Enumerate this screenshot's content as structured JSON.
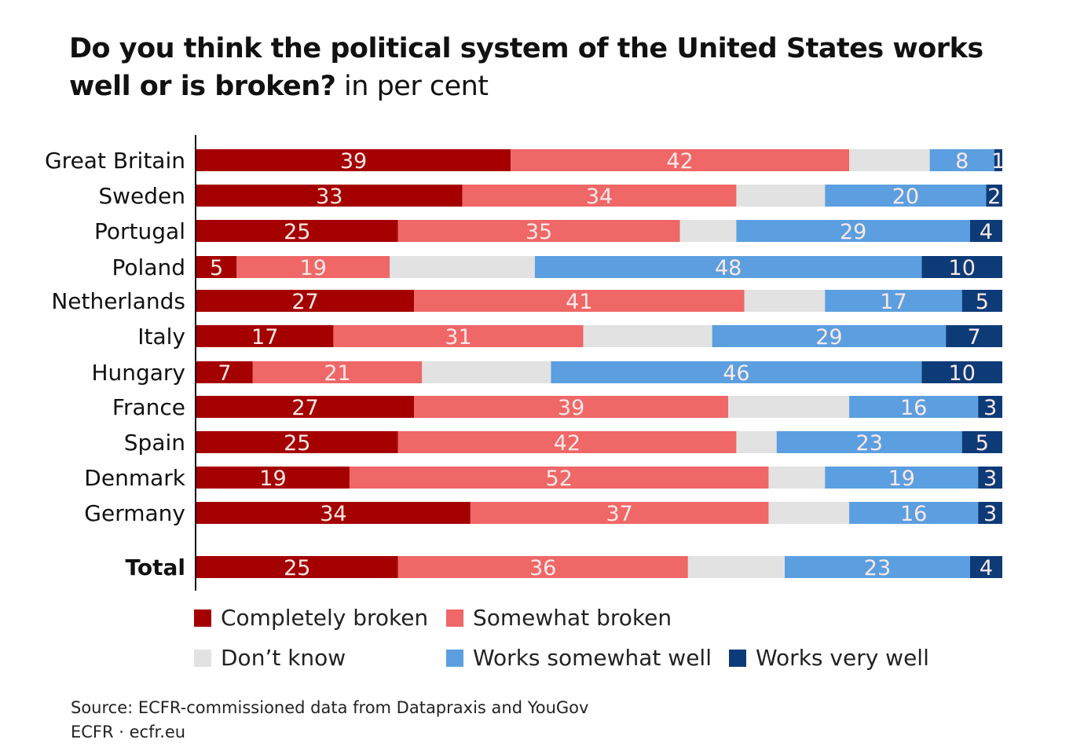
{
  "chart_data": {
    "type": "bar",
    "orientation": "horizontal",
    "stacked": true,
    "title": "Do you think the political system of the United States works well or is broken?",
    "subtitle": "in per cent",
    "categories": [
      "Great Britain",
      "Sweden",
      "Portugal",
      "Poland",
      "Netherlands",
      "Italy",
      "Hungary",
      "France",
      "Spain",
      "Denmark",
      "Germany",
      "Total"
    ],
    "series": [
      {
        "name": "Completely broken",
        "color": "#a50000",
        "values": [
          39,
          33,
          25,
          5,
          27,
          17,
          7,
          27,
          25,
          19,
          34,
          25
        ],
        "labeled": true
      },
      {
        "name": "Somewhat broken",
        "color": "#ef6767",
        "values": [
          42,
          34,
          35,
          19,
          41,
          31,
          21,
          39,
          42,
          52,
          37,
          36
        ],
        "labeled": true
      },
      {
        "name": "Don't know",
        "color": "#e2e2e2",
        "values": [
          10,
          11,
          7,
          18,
          10,
          16,
          16,
          15,
          5,
          7,
          10,
          12
        ],
        "labeled": false
      },
      {
        "name": "Works somewhat well",
        "color": "#5b9fe0",
        "values": [
          8,
          20,
          29,
          48,
          17,
          29,
          46,
          16,
          23,
          19,
          16,
          23
        ],
        "labeled": true
      },
      {
        "name": "Works very well",
        "color": "#0c3b78",
        "values": [
          1,
          2,
          4,
          10,
          5,
          7,
          10,
          3,
          5,
          3,
          3,
          4
        ],
        "labeled": true
      }
    ],
    "xlim": [
      0,
      100
    ],
    "grid": false,
    "legend_placement": "bottom"
  },
  "legend": [
    "Completely broken",
    "Somewhat broken",
    "Don’t know",
    "Works somewhat well",
    "Works very well"
  ],
  "title_bold": "Do you think the political system of the United States works well or is broken?",
  "title_rest": " in per cent",
  "source": "Source: ECFR-commissioned data from Datapraxis and YouGov",
  "credit": "ECFR · ecfr.eu"
}
